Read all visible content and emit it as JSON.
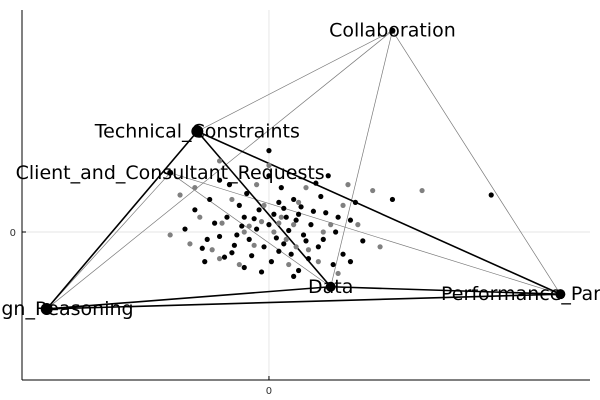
{
  "chart_data": {
    "type": "scatter",
    "title": "",
    "xlabel": "",
    "ylabel": "",
    "x_ticks": [
      "0"
    ],
    "y_ticks": [
      "0"
    ],
    "xlim": [
      -1.0,
      1.3
    ],
    "ylim": [
      -1.0,
      1.5
    ],
    "grid": true,
    "legend": "none",
    "colors": {
      "node": "#000000",
      "edge_bold": "#000000",
      "edge_thin": "#7a7a7a",
      "point_dark": "#000000",
      "point_gray": "#808080",
      "grid": "#e6e6e6",
      "axis": "#000000"
    },
    "nodes": [
      {
        "id": "collab",
        "label": "Collaboration",
        "x": 0.5,
        "y": 1.36
      },
      {
        "id": "tech",
        "label": "Technical_Constraints",
        "x": -0.29,
        "y": 0.68
      },
      {
        "id": "client",
        "label": "Client_and_Consultant_Requests",
        "x": -0.4,
        "y": 0.4
      },
      {
        "id": "design",
        "label": "Design_Reasoning",
        "x": -0.9,
        "y": -0.52
      },
      {
        "id": "data",
        "label": "Data",
        "x": 0.25,
        "y": -0.37
      },
      {
        "id": "perf",
        "label": "Performance_Parameters",
        "x": 1.18,
        "y": -0.42
      }
    ],
    "edges_bold": [
      [
        "tech",
        "design"
      ],
      [
        "tech",
        "data"
      ],
      [
        "tech",
        "perf"
      ],
      [
        "design",
        "data"
      ],
      [
        "design",
        "perf"
      ],
      [
        "data",
        "perf"
      ]
    ],
    "edges_thin": [
      [
        "collab",
        "tech"
      ],
      [
        "collab",
        "design"
      ],
      [
        "collab",
        "data"
      ],
      [
        "collab",
        "perf"
      ],
      [
        "client",
        "design"
      ],
      [
        "client",
        "data"
      ],
      [
        "client",
        "perf"
      ]
    ],
    "scatter_points": [
      [
        0.0,
        0.05
      ],
      [
        0.03,
        -0.04
      ],
      [
        -0.05,
        0.02
      ],
      [
        0.08,
        0.01
      ],
      [
        -0.02,
        -0.1
      ],
      [
        0.06,
        -0.08
      ],
      [
        -0.08,
        -0.05
      ],
      [
        0.11,
        0.08
      ],
      [
        -0.11,
        0.04
      ],
      [
        0.02,
        0.12
      ],
      [
        -0.04,
        0.15
      ],
      [
        0.14,
        -0.02
      ],
      [
        -0.14,
        -0.09
      ],
      [
        0.09,
        -0.15
      ],
      [
        -0.07,
        -0.16
      ],
      [
        0.17,
        0.05
      ],
      [
        -0.17,
        0.1
      ],
      [
        0.04,
        0.2
      ],
      [
        0.13,
        0.17
      ],
      [
        -0.12,
        0.18
      ],
      [
        0.2,
        -0.1
      ],
      [
        -0.2,
        -0.03
      ],
      [
        0.01,
        -0.2
      ],
      [
        0.1,
        0.22
      ],
      [
        -0.22,
        0.06
      ],
      [
        0.23,
        0.13
      ],
      [
        -0.09,
        0.26
      ],
      [
        0.16,
        -0.18
      ],
      [
        -0.18,
        -0.17
      ],
      [
        0.27,
        0.0
      ],
      [
        -0.27,
        -0.11
      ],
      [
        0.05,
        0.3
      ],
      [
        0.21,
        0.24
      ],
      [
        -0.24,
        0.22
      ],
      [
        0.3,
        -0.15
      ],
      [
        -0.1,
        -0.24
      ],
      [
        0.12,
        -0.26
      ],
      [
        -0.3,
        0.15
      ],
      [
        0.33,
        0.08
      ],
      [
        0.19,
        0.33
      ],
      [
        -0.16,
        0.32
      ],
      [
        0.26,
        -0.22
      ],
      [
        -0.26,
        -0.2
      ],
      [
        0.0,
        0.38
      ],
      [
        0.35,
        0.2
      ],
      [
        -0.34,
        0.02
      ],
      [
        0.1,
        -0.3
      ],
      [
        -0.03,
        -0.27
      ],
      [
        0.24,
        0.38
      ],
      [
        -0.2,
        0.35
      ],
      [
        0.38,
        -0.06
      ],
      [
        -0.06,
        0.09
      ],
      [
        0.07,
        0.1
      ],
      [
        0.15,
        -0.06
      ],
      [
        -0.13,
        -0.02
      ],
      [
        0.04,
        -0.13
      ],
      [
        0.12,
        0.12
      ],
      [
        -0.1,
        0.1
      ],
      [
        0.18,
        0.14
      ],
      [
        -0.15,
        -0.14
      ],
      [
        0.22,
        -0.05
      ],
      [
        0.28,
        0.1
      ],
      [
        -0.25,
        -0.05
      ],
      [
        0.33,
        -0.2
      ],
      [
        0.06,
        0.16
      ],
      [
        0.9,
        0.25
      ],
      [
        0.5,
        0.22
      ],
      [
        0.0,
        0.55
      ]
    ],
    "scatter_gray": [
      [
        0.02,
        0.0
      ],
      [
        -0.03,
        0.07
      ],
      [
        0.07,
        -0.05
      ],
      [
        -0.06,
        -0.09
      ],
      [
        0.1,
        0.05
      ],
      [
        -0.1,
        0.0
      ],
      [
        0.05,
        0.1
      ],
      [
        -0.02,
        0.18
      ],
      [
        0.16,
        -0.12
      ],
      [
        -0.19,
        0.06
      ],
      [
        0.12,
        0.2
      ],
      [
        -0.15,
        0.22
      ],
      [
        0.25,
        0.05
      ],
      [
        -0.23,
        -0.12
      ],
      [
        0.2,
        -0.2
      ],
      [
        -0.12,
        -0.22
      ],
      [
        0.3,
        0.18
      ],
      [
        -0.28,
        0.1
      ],
      [
        0.08,
        -0.22
      ],
      [
        0.36,
        0.05
      ],
      [
        -0.32,
        -0.08
      ],
      [
        0.15,
        0.3
      ],
      [
        -0.05,
        0.32
      ],
      [
        0.42,
        0.28
      ],
      [
        -0.36,
        0.25
      ],
      [
        0.28,
        -0.28
      ],
      [
        -0.3,
        0.3
      ],
      [
        0.0,
        0.45
      ],
      [
        -0.2,
        0.48
      ],
      [
        0.45,
        -0.1
      ],
      [
        0.62,
        0.28
      ],
      [
        0.22,
        0.0
      ],
      [
        -0.08,
        0.04
      ],
      [
        0.04,
        0.06
      ],
      [
        0.11,
        -0.1
      ],
      [
        -0.2,
        -0.18
      ],
      [
        0.32,
        0.32
      ],
      [
        -0.4,
        -0.02
      ]
    ]
  }
}
